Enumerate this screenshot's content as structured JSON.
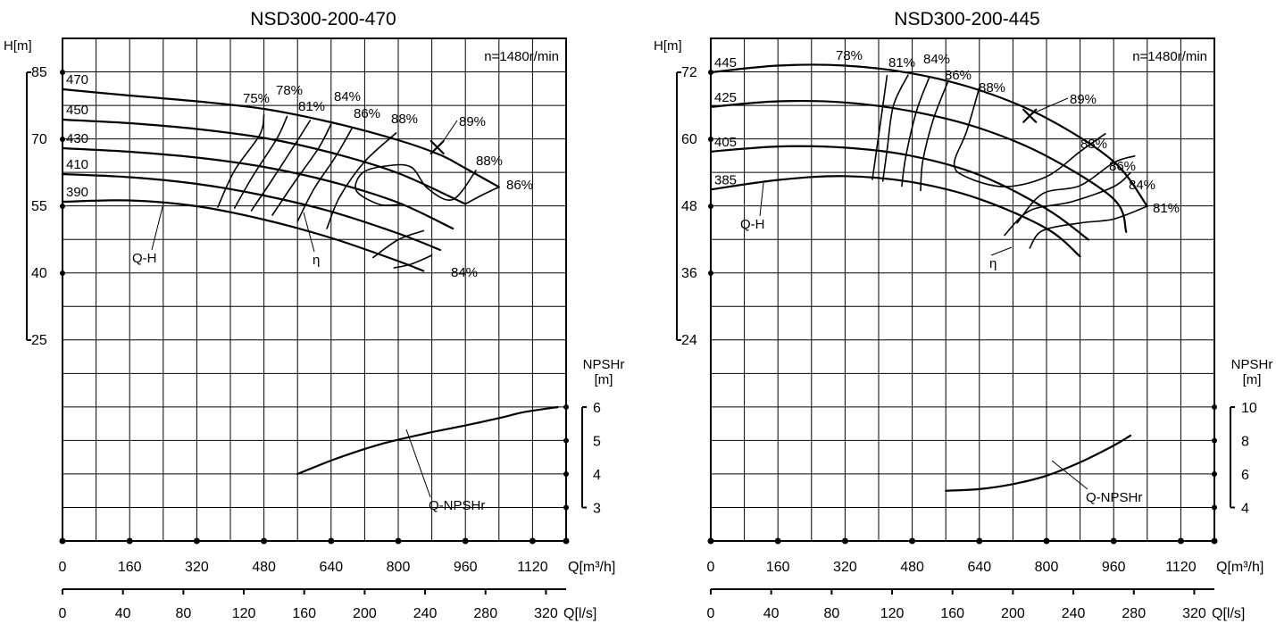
{
  "chart_data": [
    {
      "type": "line",
      "title": "NSD300-200-470",
      "speed_label": "n=1480r/min",
      "h_axis": {
        "label": "H[m]",
        "ticks": [
          "85",
          "70",
          "55",
          "40",
          "25"
        ],
        "range": [
          25,
          85
        ]
      },
      "npsh_axis": {
        "label_line1": "NPSHr",
        "label_line2": "[m]",
        "ticks": [
          "6",
          "5",
          "4",
          "3"
        ],
        "range": [
          3,
          6
        ]
      },
      "q_axis_m3h": {
        "label": "Q[m³/h]",
        "ticks": [
          "0",
          "160",
          "320",
          "480",
          "640",
          "800",
          "960",
          "1120"
        ],
        "range": [
          0,
          1200
        ]
      },
      "q_axis_ls": {
        "label": "Q[l/s]",
        "ticks": [
          "0",
          "40",
          "80",
          "120",
          "160",
          "200",
          "240",
          "280",
          "320"
        ]
      },
      "qh_curves": [
        {
          "name": "470",
          "points": [
            [
              0,
              81.2
            ],
            [
              160,
              79.8
            ],
            [
              320,
              78.5
            ],
            [
              480,
              76.8
            ],
            [
              640,
              73.8
            ],
            [
              800,
              69.8
            ],
            [
              900,
              66.5
            ],
            [
              960,
              63.5
            ],
            [
              1040,
              59.3
            ]
          ]
        },
        {
          "name": "450",
          "points": [
            [
              0,
              74.4
            ],
            [
              160,
              73.6
            ],
            [
              320,
              72.3
            ],
            [
              480,
              70.3
            ],
            [
              640,
              67.0
            ],
            [
              800,
              62.4
            ],
            [
              960,
              55.5
            ]
          ]
        },
        {
          "name": "430",
          "points": [
            [
              0,
              68.0
            ],
            [
              160,
              67.2
            ],
            [
              320,
              65.9
            ],
            [
              480,
              63.8
            ],
            [
              640,
              60.5
            ],
            [
              800,
              55.8
            ],
            [
              930,
              50.0
            ]
          ]
        },
        {
          "name": "410",
          "points": [
            [
              0,
              62.2
            ],
            [
              160,
              61.5
            ],
            [
              320,
              60.0
            ],
            [
              480,
              57.4
            ],
            [
              640,
              53.8
            ],
            [
              800,
              48.9
            ],
            [
              900,
              45.2
            ]
          ]
        },
        {
          "name": "390",
          "points": [
            [
              0,
              56.0
            ],
            [
              160,
              56.3
            ],
            [
              320,
              55.0
            ],
            [
              480,
              52.0
            ],
            [
              640,
              47.9
            ],
            [
              800,
              42.7
            ],
            [
              860,
              40.5
            ]
          ]
        }
      ],
      "efficiency_labels": [
        "75%",
        "78%",
        "81%",
        "84%",
        "86%",
        "88%",
        "89%",
        "88%",
        "86%",
        "84%"
      ],
      "efficiency_curves": [
        {
          "name": "75%",
          "points": [
            [
              370,
              54.8
            ],
            [
              410,
              63
            ],
            [
              470,
              71
            ],
            [
              480,
              75.5
            ]
          ]
        },
        {
          "name": "78%",
          "points": [
            [
              410,
              54.6
            ],
            [
              455,
              62
            ],
            [
              510,
              70
            ],
            [
              535,
              75.1
            ]
          ]
        },
        {
          "name": "81%",
          "points": [
            [
              450,
              54.0
            ],
            [
              500,
              61
            ],
            [
              555,
              69
            ],
            [
              590,
              74.2
            ]
          ]
        },
        {
          "name": "84%",
          "points": [
            [
              500,
              53.0
            ],
            [
              550,
              60
            ],
            [
              610,
              68
            ],
            [
              640,
              73.4
            ]
          ]
        },
        {
          "name": "86%",
          "points": [
            [
              560,
              51.6
            ],
            [
              600,
              59
            ],
            [
              650,
              66
            ],
            [
              690,
              72.5
            ]
          ]
        },
        {
          "name": "88%",
          "points": [
            [
              630,
              50.0
            ],
            [
              660,
              57
            ],
            [
              720,
              65
            ],
            [
              795,
              71.4
            ]
          ]
        },
        {
          "name": "88% loop",
          "points": [
            [
              805,
              55.4
            ],
            [
              755,
              55.4
            ],
            [
              700,
              58.5
            ],
            [
              715,
              62.5
            ],
            [
              770,
              64.0
            ],
            [
              830,
              63.8
            ],
            [
              870,
              59.0
            ],
            [
              930,
              56.5
            ],
            [
              985,
              63.0
            ]
          ]
        },
        {
          "name": "86% loop",
          "points": [
            [
              960,
              55.5
            ],
            [
              1000,
              57.5
            ],
            [
              1040,
              59.3
            ]
          ]
        },
        {
          "name": "84% lower",
          "points": [
            [
              740,
              43.5
            ],
            [
              800,
              47.5
            ],
            [
              860,
              49.5
            ]
          ]
        },
        {
          "name": "84% lower 2",
          "points": [
            [
              790,
              41.2
            ],
            [
              830,
              42.0
            ],
            [
              880,
              44.0
            ]
          ]
        }
      ],
      "bep_marker": {
        "q": 893,
        "h": 68.2,
        "label": "89%"
      },
      "npsh_curve": {
        "name": "Q-NPSHr",
        "points": [
          [
            560,
            4.0
          ],
          [
            650,
            4.45
          ],
          [
            760,
            4.9
          ],
          [
            880,
            5.25
          ],
          [
            960,
            5.45
          ],
          [
            1050,
            5.7
          ],
          [
            1100,
            5.85
          ],
          [
            1180,
            6.0
          ]
        ]
      },
      "annotations": {
        "qh": "Q-H",
        "eta": "η",
        "npsh": "Q-NPSHr"
      }
    },
    {
      "type": "line",
      "title": "NSD300-200-445",
      "speed_label": "n=1480r/min",
      "h_axis": {
        "label": "H[m]",
        "ticks": [
          "72",
          "60",
          "48",
          "36",
          "24"
        ],
        "range": [
          24,
          72
        ]
      },
      "npsh_axis": {
        "label_line1": "NPSHr",
        "label_line2": "[m]",
        "ticks": [
          "10",
          "8",
          "6",
          "4"
        ],
        "range": [
          4,
          10
        ]
      },
      "q_axis_m3h": {
        "label": "Q[m³/h]",
        "ticks": [
          "0",
          "160",
          "320",
          "480",
          "640",
          "800",
          "960",
          "1120"
        ],
        "range": [
          0,
          1200
        ]
      },
      "q_axis_ls": {
        "label": "Q[l/s]",
        "ticks": [
          "0",
          "40",
          "80",
          "120",
          "160",
          "200",
          "240",
          "280",
          "320"
        ]
      },
      "qh_curves": [
        {
          "name": "445",
          "points": [
            [
              0,
              72.0
            ],
            [
              160,
              73.2
            ],
            [
              320,
              73.2
            ],
            [
              480,
              71.8
            ],
            [
              640,
              68.8
            ],
            [
              800,
              63.8
            ],
            [
              960,
              56.0
            ],
            [
              1040,
              48.0
            ]
          ]
        },
        {
          "name": "425",
          "points": [
            [
              0,
              65.8
            ],
            [
              160,
              66.8
            ],
            [
              320,
              66.6
            ],
            [
              480,
              65.0
            ],
            [
              640,
              62.0
            ],
            [
              800,
              57.0
            ],
            [
              960,
              49.3
            ],
            [
              990,
              43.4
            ]
          ]
        },
        {
          "name": "405",
          "points": [
            [
              0,
              57.8
            ],
            [
              160,
              58.7
            ],
            [
              320,
              58.5
            ],
            [
              480,
              57.0
            ],
            [
              640,
              53.6
            ],
            [
              800,
              47.5
            ],
            [
              900,
              42.0
            ]
          ]
        },
        {
          "name": "385",
          "points": [
            [
              0,
              51.0
            ],
            [
              160,
              52.7
            ],
            [
              320,
              53.4
            ],
            [
              480,
              52.3
            ],
            [
              640,
              49.3
            ],
            [
              800,
              44.0
            ],
            [
              880,
              39.0
            ]
          ]
        }
      ],
      "efficiency_labels": [
        "78%",
        "81%",
        "84%",
        "86%",
        "88%",
        "89%",
        "88%",
        "86%",
        "84%",
        "81%"
      ],
      "efficiency_curves": [
        {
          "name": "78%",
          "points": [
            [
              385,
              52.8
            ],
            [
              395,
              58
            ],
            [
              410,
              66
            ],
            [
              420,
              71.4
            ]
          ]
        },
        {
          "name": "81%",
          "points": [
            [
              410,
              52.5
            ],
            [
              420,
              58
            ],
            [
              435,
              66
            ],
            [
              470,
              71.5
            ]
          ]
        },
        {
          "name": "84%",
          "points": [
            [
              455,
              51.6
            ],
            [
              465,
              57
            ],
            [
              490,
              65
            ],
            [
              520,
              71.0
            ]
          ]
        },
        {
          "name": "86%",
          "points": [
            [
              500,
              50.8
            ],
            [
              505,
              56
            ],
            [
              530,
              63.5
            ],
            [
              565,
              70.3
            ]
          ]
        },
        {
          "name": "88% loop",
          "points": [
            [
              640,
              69.3
            ],
            [
              610,
              61.5
            ],
            [
              580,
              55.6
            ],
            [
              610,
              53.2
            ],
            [
              700,
              51.5
            ],
            [
              800,
              53.3
            ],
            [
              880,
              57.8
            ],
            [
              940,
              61.0
            ]
          ]
        },
        {
          "name": "86% lower",
          "points": [
            [
              730,
              45.0
            ],
            [
              790,
              50.2
            ],
            [
              880,
              51.7
            ],
            [
              960,
              55.8
            ],
            [
              1010,
              57.0
            ]
          ]
        },
        {
          "name": "84% lower",
          "points": [
            [
              700,
              42.8
            ],
            [
              760,
              47.2
            ],
            [
              860,
              48.8
            ],
            [
              960,
              51.5
            ],
            [
              1000,
              54.0
            ]
          ]
        },
        {
          "name": "81% lower",
          "points": [
            [
              760,
              40.5
            ],
            [
              790,
              43.6
            ],
            [
              880,
              45.0
            ],
            [
              960,
              45.7
            ],
            [
              1040,
              48.0
            ]
          ]
        }
      ],
      "bep_marker": {
        "q": 760,
        "h": 64.2,
        "label": "89%"
      },
      "npsh_curve": {
        "name": "Q-NPSHr",
        "points": [
          [
            560,
            5.0
          ],
          [
            640,
            5.1
          ],
          [
            720,
            5.4
          ],
          [
            800,
            5.9
          ],
          [
            880,
            6.7
          ],
          [
            960,
            7.7
          ],
          [
            1000,
            8.3
          ]
        ]
      },
      "annotations": {
        "qh": "Q-H",
        "eta": "η",
        "npsh": "Q-NPSHr"
      }
    }
  ]
}
